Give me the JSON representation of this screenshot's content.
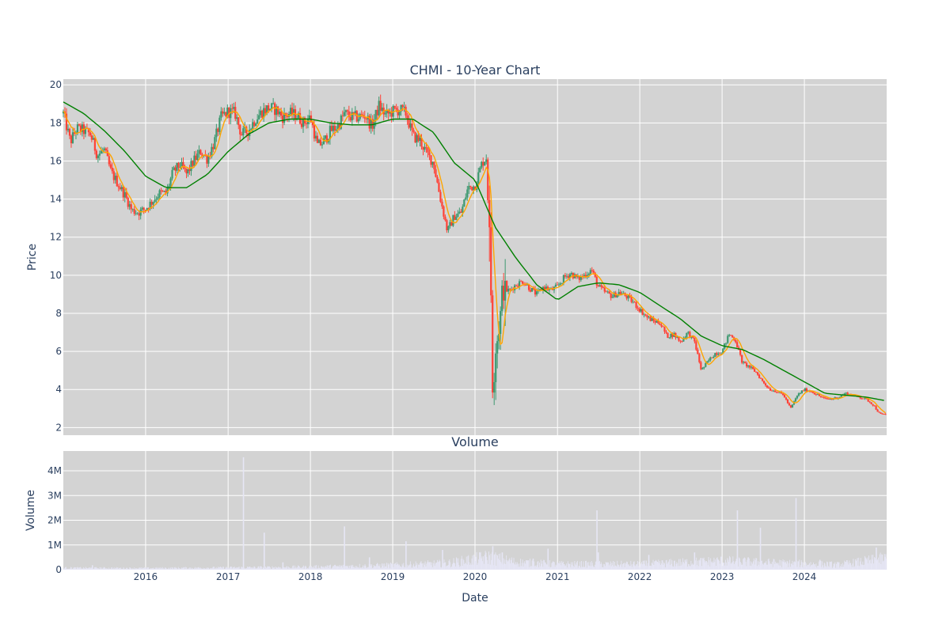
{
  "chart_data": [
    {
      "type": "candlestick",
      "title": "CHMI - 10-Year Chart",
      "xlabel": "",
      "ylabel": "Price",
      "xlim": [
        "2015-01-01",
        "2024-12-31"
      ],
      "ylim": [
        1.6,
        20.3
      ],
      "yticks": [
        2,
        4,
        6,
        8,
        10,
        12,
        14,
        16,
        18,
        20
      ],
      "grid": true,
      "legend": "none",
      "colors": {
        "increasing": "#3d9970",
        "decreasing": "#ff4136",
        "ma_short": "#ffa500",
        "ma_long": "#008000",
        "plot_bg": "#d3d3d3"
      },
      "price_path": [
        [
          "2015-01-01",
          18.5
        ],
        [
          "2015-02-01",
          17.0
        ],
        [
          "2015-03-01",
          17.7
        ],
        [
          "2015-04-01",
          17.6
        ],
        [
          "2015-05-01",
          17.4
        ],
        [
          "2015-06-01",
          16.3
        ],
        [
          "2015-07-01",
          16.6
        ],
        [
          "2015-08-01",
          15.4
        ],
        [
          "2015-09-01",
          14.8
        ],
        [
          "2015-10-01",
          14.2
        ],
        [
          "2015-11-01",
          13.4
        ],
        [
          "2015-12-01",
          13.3
        ],
        [
          "2016-01-01",
          13.5
        ],
        [
          "2016-02-01",
          13.9
        ],
        [
          "2016-03-01",
          14.3
        ],
        [
          "2016-04-01",
          14.3
        ],
        [
          "2016-05-01",
          15.4
        ],
        [
          "2016-06-01",
          15.8
        ],
        [
          "2016-07-01",
          15.3
        ],
        [
          "2016-08-01",
          16.0
        ],
        [
          "2016-09-01",
          16.5
        ],
        [
          "2016-10-01",
          16.1
        ],
        [
          "2016-11-01",
          17.0
        ],
        [
          "2016-12-01",
          18.3
        ],
        [
          "2017-01-01",
          18.6
        ],
        [
          "2017-02-01",
          18.5
        ],
        [
          "2017-03-01",
          17.4
        ],
        [
          "2017-04-01",
          17.6
        ],
        [
          "2017-05-01",
          18.2
        ],
        [
          "2017-06-01",
          18.6
        ],
        [
          "2017-07-01",
          18.8
        ],
        [
          "2017-08-01",
          18.7
        ],
        [
          "2017-09-01",
          18.3
        ],
        [
          "2017-10-01",
          18.5
        ],
        [
          "2017-11-01",
          18.4
        ],
        [
          "2017-12-01",
          18.0
        ],
        [
          "2018-01-01",
          18.3
        ],
        [
          "2018-02-01",
          16.8
        ],
        [
          "2018-03-01",
          17.0
        ],
        [
          "2018-04-01",
          17.6
        ],
        [
          "2018-05-01",
          17.8
        ],
        [
          "2018-06-01",
          18.5
        ],
        [
          "2018-07-01",
          18.3
        ],
        [
          "2018-08-01",
          18.3
        ],
        [
          "2018-09-01",
          18.4
        ],
        [
          "2018-10-01",
          17.8
        ],
        [
          "2018-11-01",
          18.9
        ],
        [
          "2018-12-01",
          18.4
        ],
        [
          "2019-01-01",
          18.6
        ],
        [
          "2019-02-01",
          18.7
        ],
        [
          "2019-03-01",
          18.5
        ],
        [
          "2019-04-01",
          17.3
        ],
        [
          "2019-05-01",
          17.1
        ],
        [
          "2019-06-01",
          16.4
        ],
        [
          "2019-07-01",
          15.9
        ],
        [
          "2019-08-01",
          14.0
        ],
        [
          "2019-09-01",
          12.3
        ],
        [
          "2019-10-01",
          13.1
        ],
        [
          "2019-11-01",
          13.3
        ],
        [
          "2019-12-01",
          14.6
        ],
        [
          "2020-01-01",
          14.7
        ],
        [
          "2020-02-01",
          15.9
        ],
        [
          "2020-02-20",
          16.2
        ],
        [
          "2020-03-10",
          10.5
        ],
        [
          "2020-03-20",
          3.3
        ],
        [
          "2020-04-01",
          6.0
        ],
        [
          "2020-04-20",
          7.5
        ],
        [
          "2020-05-01",
          9.2
        ],
        [
          "2020-06-01",
          9.2
        ],
        [
          "2020-07-01",
          9.5
        ],
        [
          "2020-08-01",
          9.7
        ],
        [
          "2020-09-01",
          9.3
        ],
        [
          "2020-10-01",
          9.0
        ],
        [
          "2020-11-01",
          9.4
        ],
        [
          "2020-12-01",
          9.2
        ],
        [
          "2021-01-01",
          9.4
        ],
        [
          "2021-02-01",
          9.9
        ],
        [
          "2021-03-01",
          10.1
        ],
        [
          "2021-04-01",
          9.8
        ],
        [
          "2021-05-01",
          10.0
        ],
        [
          "2021-06-01",
          10.3
        ],
        [
          "2021-07-01",
          9.4
        ],
        [
          "2021-08-01",
          9.1
        ],
        [
          "2021-09-01",
          8.9
        ],
        [
          "2021-10-01",
          9.1
        ],
        [
          "2021-11-01",
          8.9
        ],
        [
          "2021-12-01",
          8.6
        ],
        [
          "2022-01-01",
          8.2
        ],
        [
          "2022-02-01",
          7.8
        ],
        [
          "2022-03-01",
          7.6
        ],
        [
          "2022-04-01",
          7.5
        ],
        [
          "2022-05-01",
          6.8
        ],
        [
          "2022-06-01",
          6.9
        ],
        [
          "2022-07-01",
          6.5
        ],
        [
          "2022-08-01",
          7.0
        ],
        [
          "2022-09-01",
          6.5
        ],
        [
          "2022-10-01",
          5.0
        ],
        [
          "2022-11-01",
          5.5
        ],
        [
          "2022-12-01",
          5.9
        ],
        [
          "2023-01-01",
          6.0
        ],
        [
          "2023-02-01",
          6.9
        ],
        [
          "2023-03-01",
          6.6
        ],
        [
          "2023-04-01",
          5.4
        ],
        [
          "2023-05-01",
          5.2
        ],
        [
          "2023-06-01",
          4.9
        ],
        [
          "2023-07-01",
          4.4
        ],
        [
          "2023-08-01",
          4.0
        ],
        [
          "2023-09-01",
          3.9
        ],
        [
          "2023-10-01",
          3.7
        ],
        [
          "2023-11-01",
          3.0
        ],
        [
          "2023-12-01",
          3.7
        ],
        [
          "2024-01-01",
          4.0
        ],
        [
          "2024-02-01",
          3.9
        ],
        [
          "2024-03-01",
          3.7
        ],
        [
          "2024-04-01",
          3.5
        ],
        [
          "2024-05-01",
          3.5
        ],
        [
          "2024-06-01",
          3.6
        ],
        [
          "2024-07-01",
          3.8
        ],
        [
          "2024-08-01",
          3.7
        ],
        [
          "2024-09-01",
          3.6
        ],
        [
          "2024-10-01",
          3.5
        ],
        [
          "2024-11-01",
          3.2
        ],
        [
          "2024-12-01",
          2.7
        ],
        [
          "2024-12-31",
          2.7
        ]
      ],
      "ma_long": [
        [
          "2015-01-01",
          19.1
        ],
        [
          "2015-04-01",
          18.5
        ],
        [
          "2015-07-01",
          17.6
        ],
        [
          "2015-10-01",
          16.5
        ],
        [
          "2016-01-01",
          15.2
        ],
        [
          "2016-04-01",
          14.6
        ],
        [
          "2016-07-01",
          14.6
        ],
        [
          "2016-10-01",
          15.3
        ],
        [
          "2017-01-01",
          16.5
        ],
        [
          "2017-04-01",
          17.4
        ],
        [
          "2017-07-01",
          18.0
        ],
        [
          "2017-10-01",
          18.2
        ],
        [
          "2018-01-01",
          18.2
        ],
        [
          "2018-04-01",
          18.0
        ],
        [
          "2018-07-01",
          17.9
        ],
        [
          "2018-10-01",
          17.9
        ],
        [
          "2019-01-01",
          18.2
        ],
        [
          "2019-04-01",
          18.2
        ],
        [
          "2019-07-01",
          17.5
        ],
        [
          "2019-10-01",
          15.9
        ],
        [
          "2020-01-01",
          15.0
        ],
        [
          "2020-04-01",
          12.5
        ],
        [
          "2020-07-01",
          10.9
        ],
        [
          "2020-10-01",
          9.5
        ],
        [
          "2021-01-01",
          8.7
        ],
        [
          "2021-04-01",
          9.4
        ],
        [
          "2021-07-01",
          9.6
        ],
        [
          "2021-10-01",
          9.5
        ],
        [
          "2022-01-01",
          9.1
        ],
        [
          "2022-04-01",
          8.4
        ],
        [
          "2022-07-01",
          7.7
        ],
        [
          "2022-10-01",
          6.8
        ],
        [
          "2023-01-01",
          6.3
        ],
        [
          "2023-04-01",
          6.1
        ],
        [
          "2023-07-01",
          5.6
        ],
        [
          "2023-10-01",
          5.0
        ],
        [
          "2024-01-01",
          4.4
        ],
        [
          "2024-04-01",
          3.8
        ],
        [
          "2024-07-01",
          3.7
        ],
        [
          "2024-10-01",
          3.6
        ],
        [
          "2024-12-31",
          3.4
        ]
      ]
    },
    {
      "type": "bar",
      "title": "Volume",
      "xlabel": "Date",
      "ylabel": "Volume",
      "xlim": [
        "2015-01-01",
        "2024-12-31"
      ],
      "ylim": [
        0,
        4800000
      ],
      "yticks": [
        0,
        1000000,
        2000000,
        3000000,
        4000000
      ],
      "ytick_labels": [
        "0",
        "1M",
        "2M",
        "3M",
        "4M"
      ],
      "xtick_labels": [
        "2016",
        "2017",
        "2018",
        "2019",
        "2020",
        "2021",
        "2022",
        "2023",
        "2024"
      ],
      "grid": true,
      "colors": {
        "bar": "#e6e6f5",
        "plot_bg": "#d3d3d3"
      },
      "volume_baseline": [
        [
          "2015-01-01",
          70000
        ],
        [
          "2016-01-01",
          60000
        ],
        [
          "2017-01-01",
          80000
        ],
        [
          "2018-01-01",
          110000
        ],
        [
          "2019-01-01",
          180000
        ],
        [
          "2019-09-01",
          260000
        ],
        [
          "2020-03-01",
          500000
        ],
        [
          "2020-07-01",
          300000
        ],
        [
          "2021-01-01",
          220000
        ],
        [
          "2022-01-01",
          220000
        ],
        [
          "2023-01-01",
          350000
        ],
        [
          "2023-08-01",
          280000
        ],
        [
          "2024-06-01",
          200000
        ],
        [
          "2024-12-31",
          450000
        ]
      ],
      "volume_spikes": [
        [
          "2015-05-10",
          180000
        ],
        [
          "2017-03-10",
          4550000
        ],
        [
          "2017-06-10",
          1500000
        ],
        [
          "2017-09-01",
          300000
        ],
        [
          "2018-06-01",
          1750000
        ],
        [
          "2018-09-20",
          500000
        ],
        [
          "2019-03-01",
          1150000
        ],
        [
          "2019-08-10",
          800000
        ],
        [
          "2020-03-20",
          950000
        ],
        [
          "2020-05-01",
          700000
        ],
        [
          "2020-09-15",
          450000
        ],
        [
          "2020-11-20",
          850000
        ],
        [
          "2021-06-25",
          2400000
        ],
        [
          "2021-07-01",
          700000
        ],
        [
          "2022-02-10",
          600000
        ],
        [
          "2022-09-01",
          700000
        ],
        [
          "2023-03-10",
          2400000
        ],
        [
          "2023-06-20",
          1700000
        ],
        [
          "2023-11-25",
          2900000
        ],
        [
          "2024-03-10",
          400000
        ],
        [
          "2024-11-15",
          900000
        ]
      ]
    }
  ]
}
